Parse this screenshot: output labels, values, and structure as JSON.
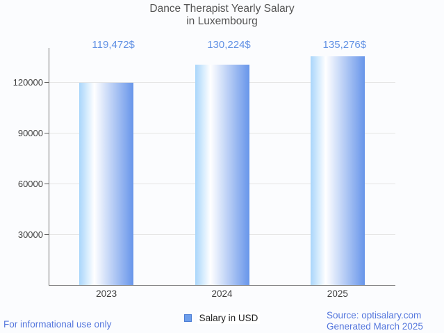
{
  "title": {
    "line1": "Dance Therapist Yearly Salary",
    "line2": "in Luxembourg"
  },
  "chart_data": {
    "type": "bar",
    "categories": [
      "2023",
      "2024",
      "2025"
    ],
    "series": [
      {
        "name": "Salary in USD",
        "values": [
          119472,
          130224,
          135276
        ]
      }
    ],
    "annotations": [
      "119,472$",
      "130,224$",
      "135,276$"
    ],
    "ylabel": "",
    "xlabel": "",
    "y_ticks": [
      30000,
      60000,
      90000,
      120000
    ],
    "ylim": [
      0,
      140000
    ],
    "grid": true,
    "legend_position": "bottom",
    "legend_label": "Salary in USD",
    "colors": {
      "bar_gradient_left": "#a9d6fb",
      "bar_gradient_mid": "#ffffff",
      "bar_gradient_right": "#6795ea",
      "annotation_text": "#6191e4",
      "legend_swatch": "#6d9eeb",
      "footer_link": "#5577dd"
    }
  },
  "footer": {
    "disclaimer": "For informational use only",
    "source": "Source: optisalary.com",
    "generated": "Generated March 2025"
  }
}
